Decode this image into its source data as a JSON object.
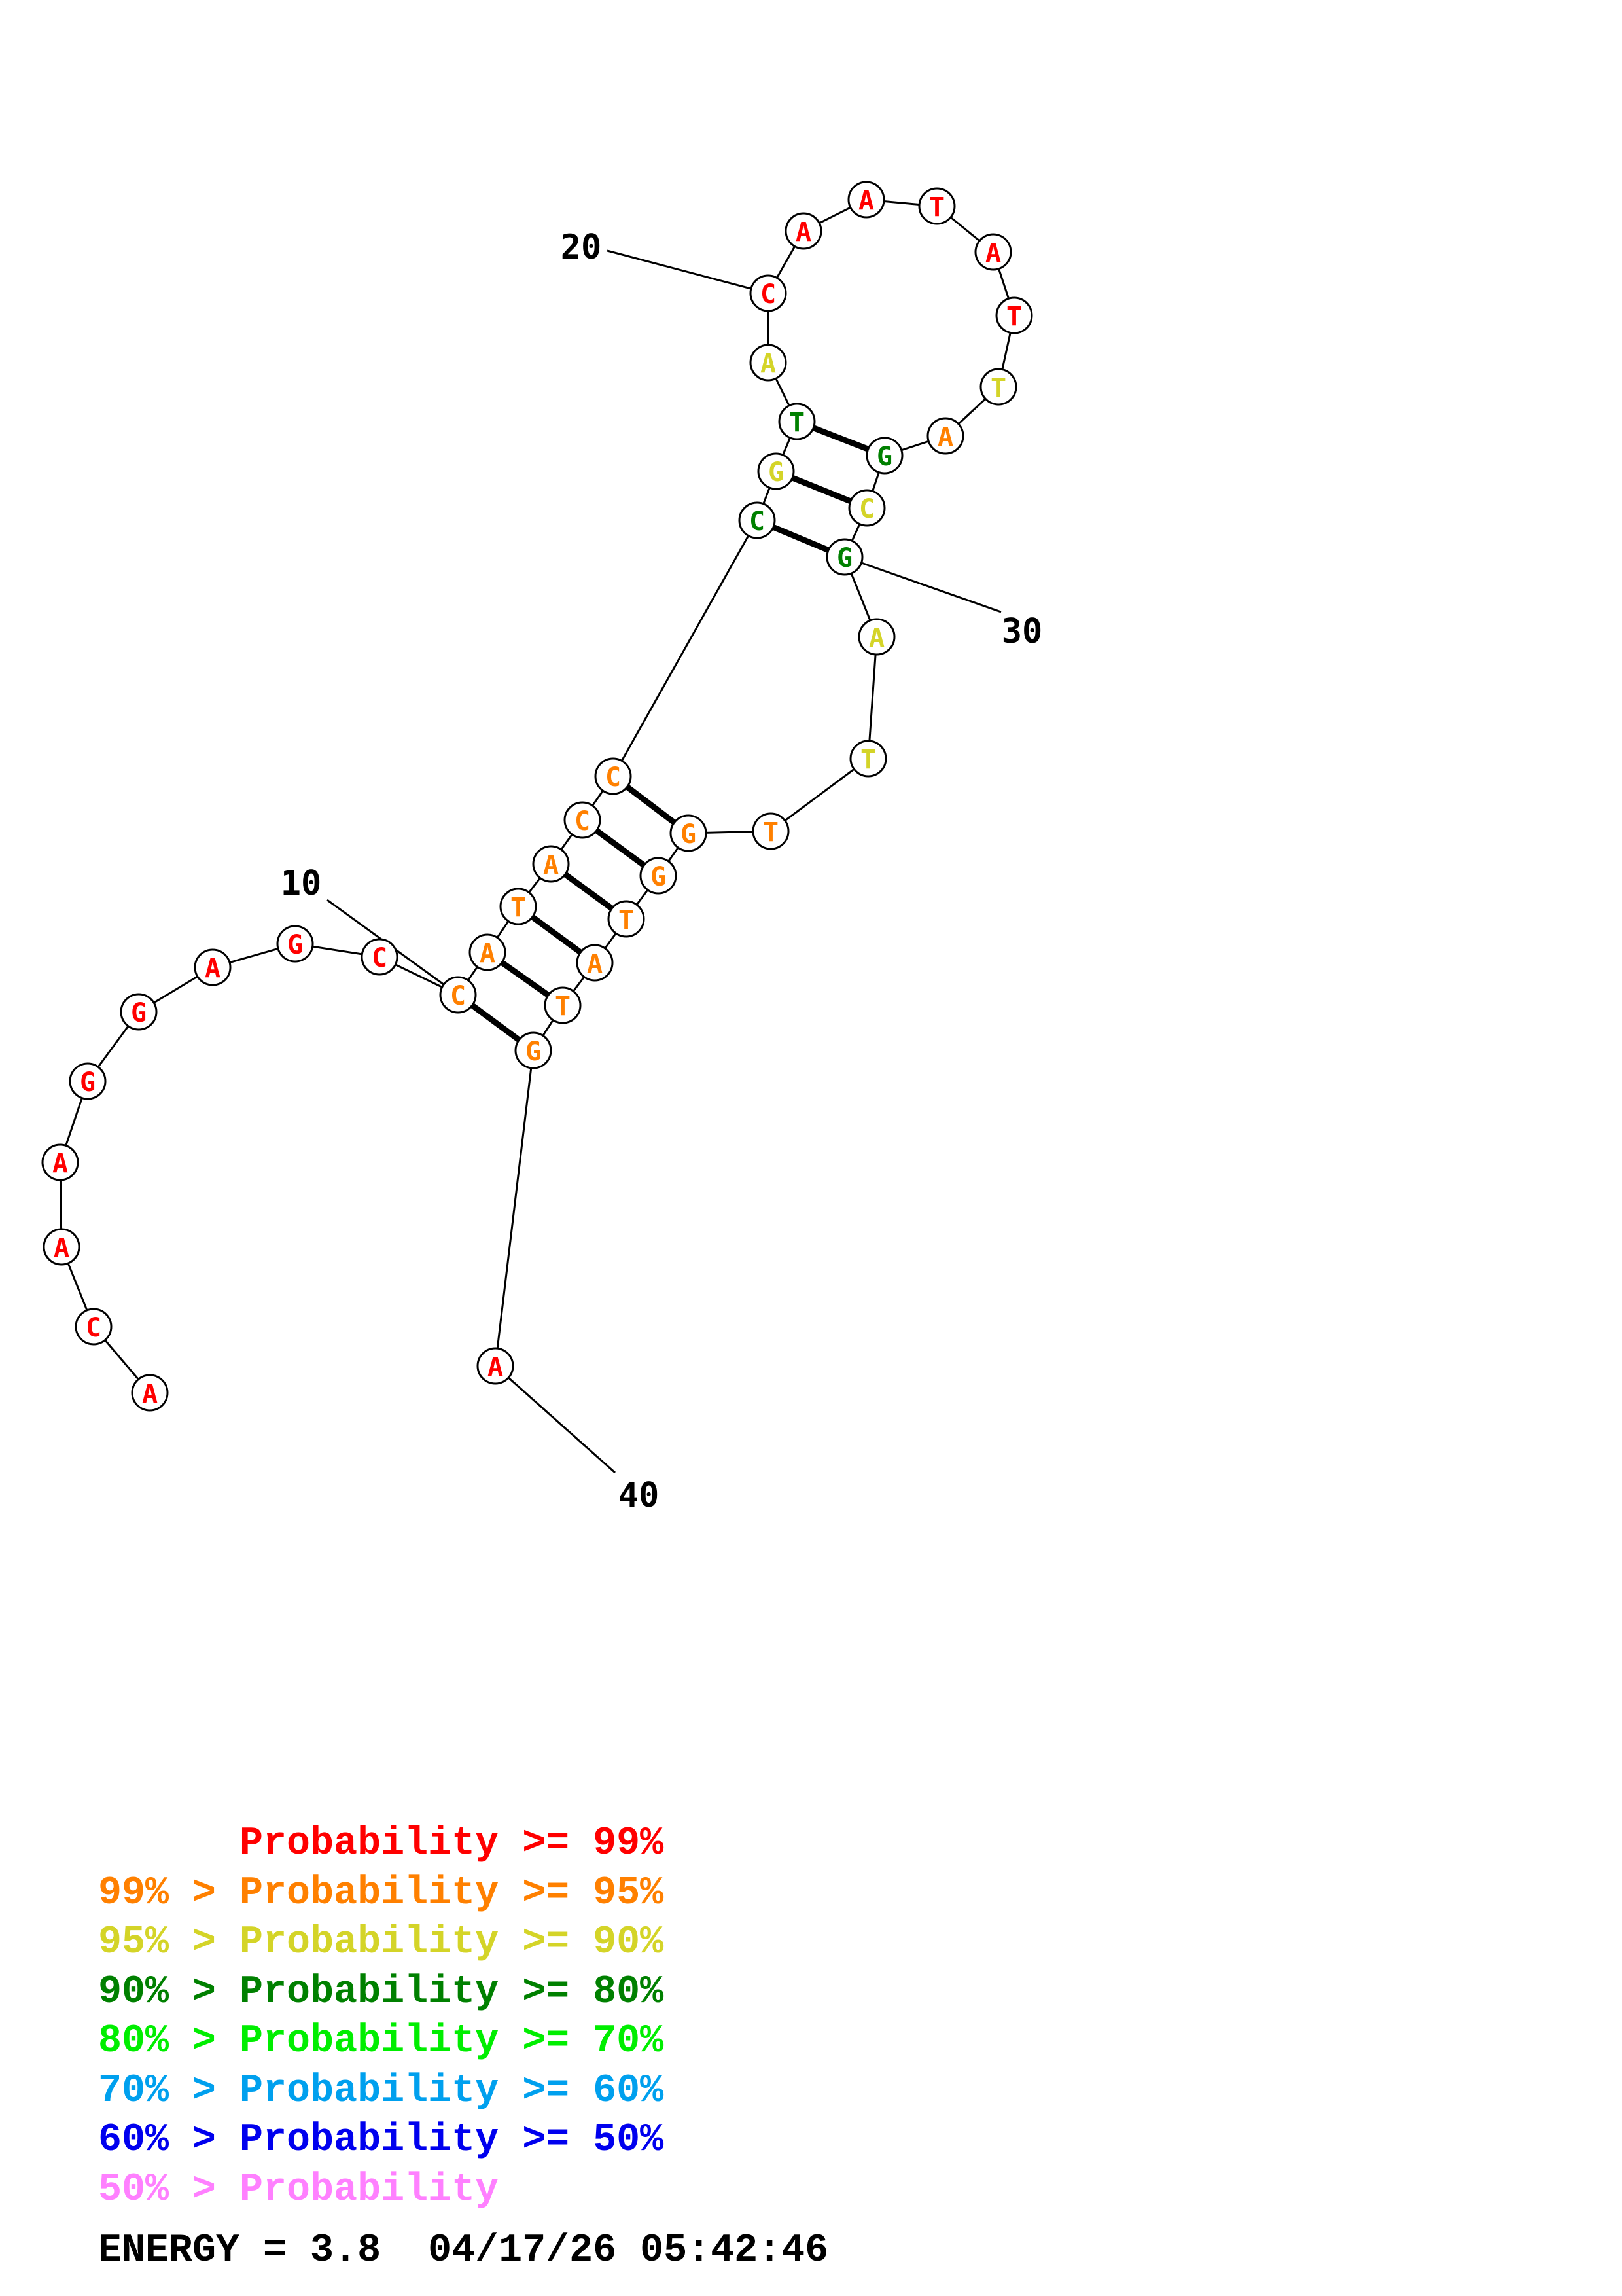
{
  "colors": {
    "p99": "#ff0000",
    "p95": "#ff8000",
    "p90": "#d4d428",
    "p80": "#008000",
    "p70": "#00ee00",
    "p60": "#00a0ee",
    "p50": "#0000ee",
    "plow": "#ff80ff"
  },
  "sequence": [
    {
      "base": "A",
      "tier": "p99"
    },
    {
      "base": "C",
      "tier": "p99"
    },
    {
      "base": "A",
      "tier": "p99"
    },
    {
      "base": "A",
      "tier": "p99"
    },
    {
      "base": "G",
      "tier": "p99"
    },
    {
      "base": "G",
      "tier": "p99"
    },
    {
      "base": "A",
      "tier": "p99"
    },
    {
      "base": "G",
      "tier": "p99"
    },
    {
      "base": "C",
      "tier": "p99"
    },
    {
      "base": "C",
      "tier": "p95"
    },
    {
      "base": "A",
      "tier": "p95"
    },
    {
      "base": "T",
      "tier": "p95"
    },
    {
      "base": "A",
      "tier": "p95"
    },
    {
      "base": "C",
      "tier": "p95"
    },
    {
      "base": "C",
      "tier": "p95"
    },
    {
      "base": "C",
      "tier": "p80"
    },
    {
      "base": "G",
      "tier": "p90"
    },
    {
      "base": "T",
      "tier": "p80"
    },
    {
      "base": "A",
      "tier": "p90"
    },
    {
      "base": "C",
      "tier": "p99"
    },
    {
      "base": "A",
      "tier": "p99"
    },
    {
      "base": "A",
      "tier": "p99"
    },
    {
      "base": "T",
      "tier": "p99"
    },
    {
      "base": "A",
      "tier": "p99"
    },
    {
      "base": "T",
      "tier": "p99"
    },
    {
      "base": "T",
      "tier": "p90"
    },
    {
      "base": "A",
      "tier": "p95"
    },
    {
      "base": "G",
      "tier": "p80"
    },
    {
      "base": "C",
      "tier": "p90"
    },
    {
      "base": "G",
      "tier": "p80"
    },
    {
      "base": "A",
      "tier": "p90"
    },
    {
      "base": "T",
      "tier": "p90"
    },
    {
      "base": "T",
      "tier": "p95"
    },
    {
      "base": "G",
      "tier": "p95"
    },
    {
      "base": "G",
      "tier": "p95"
    },
    {
      "base": "T",
      "tier": "p95"
    },
    {
      "base": "A",
      "tier": "p95"
    },
    {
      "base": "T",
      "tier": "p95"
    },
    {
      "base": "G",
      "tier": "p95"
    },
    {
      "base": "A",
      "tier": "p99"
    }
  ],
  "pairs": [
    [
      10,
      39
    ],
    [
      11,
      38
    ],
    [
      12,
      37
    ],
    [
      13,
      36
    ],
    [
      14,
      35
    ],
    [
      15,
      34
    ],
    [
      16,
      30
    ],
    [
      17,
      29
    ],
    [
      18,
      28
    ]
  ],
  "index_labels": [
    {
      "nucleotide": 10,
      "text": "10"
    },
    {
      "nucleotide": 20,
      "text": "20"
    },
    {
      "nucleotide": 30,
      "text": "30"
    },
    {
      "nucleotide": 40,
      "text": "40"
    }
  ],
  "legend": [
    {
      "text": "      Probability >= 99%",
      "tier": "p99"
    },
    {
      "text": "99% > Probability >= 95%",
      "tier": "p95"
    },
    {
      "text": "95% > Probability >= 90%",
      "tier": "p90"
    },
    {
      "text": "90% > Probability >= 80%",
      "tier": "p80"
    },
    {
      "text": "80% > Probability >= 70%",
      "tier": "p70"
    },
    {
      "text": "70% > Probability >= 60%",
      "tier": "p60"
    },
    {
      "text": "60% > Probability >= 50%",
      "tier": "p50"
    },
    {
      "text": "50% > Probability",
      "tier": "plow"
    }
  ],
  "energy_text": "ENERGY = 3.8  04/17/26 05:42:46"
}
